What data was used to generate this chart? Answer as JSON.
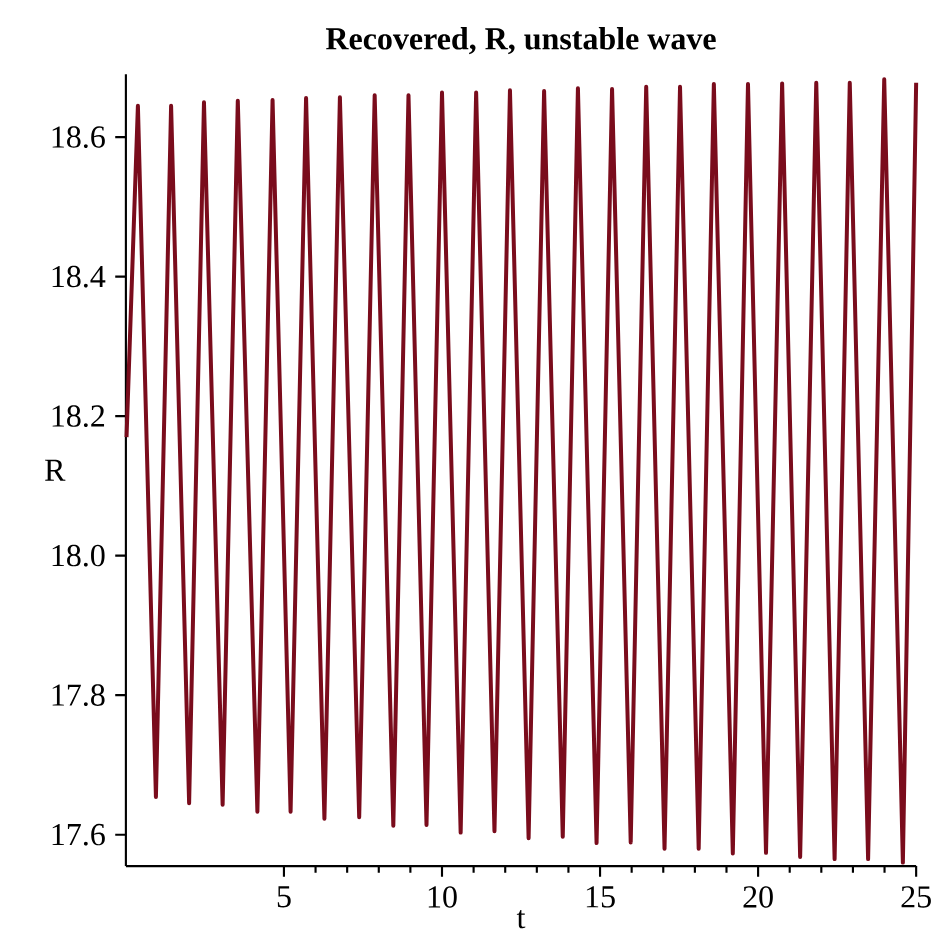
{
  "chart_data": {
    "type": "line",
    "title": "Recovered, R, unstable wave",
    "xlabel": "t",
    "ylabel": "R",
    "xlim": [
      0,
      25
    ],
    "ylim": [
      17.555,
      18.69
    ],
    "xticks": [
      5,
      10,
      15,
      20,
      25
    ],
    "yticks": [
      17.6,
      17.8,
      {
        "value": 18,
        "label": "18.0"
      },
      18.2,
      18.4,
      18.6
    ],
    "grid": false,
    "marker": "none",
    "line_style": "solid",
    "series": [
      {
        "color": "#7a0c1c",
        "x": [
          0.02,
          0.38,
          0.95,
          1.43,
          2.0,
          2.47,
          3.06,
          3.54,
          4.16,
          4.64,
          5.21,
          5.7,
          6.28,
          6.77,
          7.38,
          7.87,
          8.46,
          8.94,
          9.51,
          10.0,
          10.59,
          11.08,
          11.66,
          12.15,
          12.74,
          13.23,
          13.82,
          14.3,
          14.89,
          15.38,
          15.97,
          16.46,
          17.04,
          17.53,
          18.12,
          18.6,
          19.2,
          19.68,
          20.25,
          20.76,
          21.33,
          21.84,
          22.42,
          22.9,
          23.48,
          23.99,
          24.58,
          25.0
        ],
        "values": [
          18.17,
          18.645,
          17.654,
          18.645,
          17.645,
          18.65,
          17.643,
          18.652,
          17.633,
          18.653,
          17.633,
          18.656,
          17.623,
          18.657,
          17.625,
          18.66,
          17.613,
          18.66,
          17.614,
          18.664,
          17.603,
          18.664,
          17.605,
          18.667,
          17.595,
          18.666,
          17.597,
          18.67,
          17.588,
          18.669,
          17.589,
          18.672,
          17.58,
          18.672,
          17.58,
          18.676,
          17.573,
          18.676,
          17.574,
          18.677,
          17.568,
          18.678,
          17.565,
          18.678,
          17.565,
          18.683,
          17.56,
          18.678
        ]
      }
    ]
  }
}
